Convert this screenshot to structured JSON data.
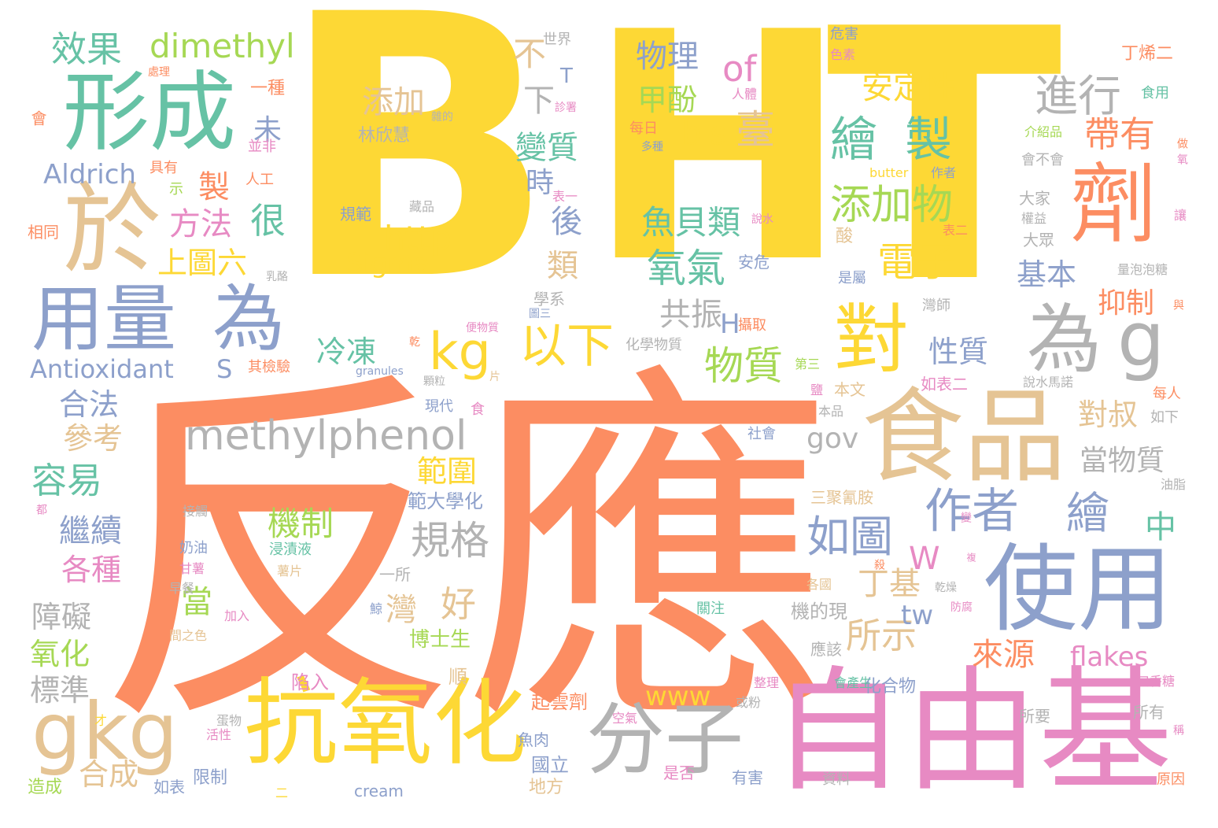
{
  "palette": {
    "yellow": "#fdd835",
    "orange": "#fc8d62",
    "green": "#66c2a5",
    "blue": "#8da0cb",
    "pink": "#e78ac3",
    "lime": "#a6d854",
    "tan": "#e5c494",
    "gray": "#b3b3b3"
  },
  "words": [
    {
      "text": "B"
    },
    {
      "text": "H"
    },
    {
      "text": "T"
    },
    {
      "text": "反應"
    },
    {
      "text": "自由基"
    },
    {
      "text": "食品"
    },
    {
      "text": "使用"
    },
    {
      "text": "抗氧化"
    },
    {
      "text": "分子"
    },
    {
      "text": "形成"
    },
    {
      "text": "於"
    },
    {
      "text": "用量"
    },
    {
      "text": "為"
    },
    {
      "text": "劑"
    },
    {
      "text": "對"
    },
    {
      "text": "為"
    },
    {
      "text": "g"
    },
    {
      "text": "g"
    },
    {
      "text": "kg"
    },
    {
      "text": "methylphenol"
    },
    {
      "text": "kg"
    },
    {
      "text": "以下"
    },
    {
      "text": "繪"
    },
    {
      "text": "製"
    },
    {
      "text": "進行"
    },
    {
      "text": "作者"
    },
    {
      "text": "繪"
    },
    {
      "text": "如圖"
    },
    {
      "text": "效果"
    },
    {
      "text": "dimethyl"
    },
    {
      "text": "of"
    },
    {
      "text": "物理"
    },
    {
      "text": "添加物"
    },
    {
      "text": "http"
    },
    {
      "text": "Sigma"
    },
    {
      "text": "Aldrich"
    },
    {
      "text": "Antioxidant"
    },
    {
      "text": "S"
    },
    {
      "text": "氧氣"
    },
    {
      "text": "電子"
    },
    {
      "text": "帶有"
    },
    {
      "text": "規格"
    },
    {
      "text": "物質"
    },
    {
      "text": "bis"
    },
    {
      "text": "臺"
    },
    {
      "text": "甲酚"
    },
    {
      "text": "安定性"
    },
    {
      "text": "魚貝類"
    },
    {
      "text": "添加"
    },
    {
      "text": "變質"
    },
    {
      "text": "上圖六"
    },
    {
      "text": "方法"
    },
    {
      "text": "很"
    },
    {
      "text": "容易"
    },
    {
      "text": "合法"
    },
    {
      "text": "參考"
    },
    {
      "text": "繼續"
    },
    {
      "text": "各種"
    },
    {
      "text": "障礙"
    },
    {
      "text": "氧化"
    },
    {
      "text": "標準"
    },
    {
      "text": "合成"
    },
    {
      "text": "範圍"
    },
    {
      "text": "機制"
    },
    {
      "text": "共振"
    },
    {
      "text": "冷凍"
    },
    {
      "text": "性質"
    },
    {
      "text": "丁基"
    },
    {
      "text": "所示"
    },
    {
      "text": "來源"
    },
    {
      "text": "flakes"
    },
    {
      "text": "www"
    },
    {
      "text": "對叔"
    },
    {
      "text": "當物質"
    },
    {
      "text": "基本"
    },
    {
      "text": "抑制"
    },
    {
      "text": "中"
    },
    {
      "text": "gov"
    },
    {
      "text": "tw"
    },
    {
      "text": "W"
    },
    {
      "text": "H"
    },
    {
      "text": "灣"
    },
    {
      "text": "好"
    },
    {
      "text": "當"
    },
    {
      "text": "不"
    },
    {
      "text": "下"
    },
    {
      "text": "未"
    },
    {
      "text": "製"
    },
    {
      "text": "時"
    },
    {
      "text": "後"
    },
    {
      "text": "類"
    },
    {
      "text": "T"
    },
    {
      "text": "林欣慧"
    },
    {
      "text": "範大學化"
    },
    {
      "text": "博士生"
    },
    {
      "text": "陷入"
    },
    {
      "text": "順"
    },
    {
      "text": "起雲劑"
    },
    {
      "text": "國立"
    },
    {
      "text": "地方"
    },
    {
      "text": "魚肉"
    },
    {
      "text": "一所"
    },
    {
      "text": "機的現"
    },
    {
      "text": "應該"
    },
    {
      "text": "化合物"
    },
    {
      "text": "三聚氰胺"
    },
    {
      "text": "本文"
    },
    {
      "text": "本品"
    },
    {
      "text": "如表二"
    },
    {
      "text": "說水馬諾"
    },
    {
      "text": "每人"
    },
    {
      "text": "如下"
    },
    {
      "text": "油脂"
    },
    {
      "text": "口香糖"
    },
    {
      "text": "所有"
    },
    {
      "text": "所要"
    },
    {
      "text": "會產生"
    },
    {
      "text": "原因"
    },
    {
      "text": "資料"
    },
    {
      "text": "有害"
    },
    {
      "text": "是否"
    },
    {
      "text": "cream"
    },
    {
      "text": "限制"
    },
    {
      "text": "如表"
    },
    {
      "text": "造成"
    },
    {
      "text": "活性"
    },
    {
      "text": "蛋物"
    },
    {
      "text": "早餐"
    },
    {
      "text": "加入"
    },
    {
      "text": "甘薯"
    },
    {
      "text": "奶油"
    },
    {
      "text": "接觸"
    },
    {
      "text": "間之色"
    },
    {
      "text": "浸漬液"
    },
    {
      "text": "薯片"
    },
    {
      "text": "現代"
    },
    {
      "text": "食"
    },
    {
      "text": "顆粒"
    },
    {
      "text": "granules"
    },
    {
      "text": "片"
    },
    {
      "text": "化學物質"
    },
    {
      "text": "其檢驗"
    },
    {
      "text": "第三"
    },
    {
      "text": "鹽"
    },
    {
      "text": "社會"
    },
    {
      "text": "關注"
    },
    {
      "text": "學系"
    },
    {
      "text": "便物質"
    },
    {
      "text": "乳酪"
    },
    {
      "text": "安危"
    },
    {
      "text": "攝取"
    },
    {
      "text": "是屬"
    },
    {
      "text": "灣師"
    },
    {
      "text": "大眾"
    },
    {
      "text": "酸"
    },
    {
      "text": "表二"
    },
    {
      "text": "量泡泡糖"
    },
    {
      "text": "大家"
    },
    {
      "text": "權益"
    },
    {
      "text": "說水"
    },
    {
      "text": "規範"
    },
    {
      "text": "藏品"
    },
    {
      "text": "butter"
    },
    {
      "text": "作者"
    },
    {
      "text": "會不會"
    },
    {
      "text": "介紹品"
    },
    {
      "text": "食用"
    },
    {
      "text": "人體"
    },
    {
      "text": "丁烯二"
    },
    {
      "text": "危害"
    },
    {
      "text": "色素"
    },
    {
      "text": "每日"
    },
    {
      "text": "多種"
    },
    {
      "text": "世界"
    },
    {
      "text": "診署"
    },
    {
      "text": "雜的"
    },
    {
      "text": "表一"
    },
    {
      "text": "一種"
    },
    {
      "text": "並非"
    },
    {
      "text": "具有"
    },
    {
      "text": "示"
    },
    {
      "text": "人工"
    },
    {
      "text": "相同"
    },
    {
      "text": "處理"
    },
    {
      "text": "會"
    },
    {
      "text": "做"
    },
    {
      "text": "氧"
    },
    {
      "text": "讓"
    },
    {
      "text": "稱"
    },
    {
      "text": "與"
    },
    {
      "text": "變"
    },
    {
      "text": "複"
    },
    {
      "text": "乾燥"
    },
    {
      "text": "防腐"
    },
    {
      "text": "殺"
    },
    {
      "text": "各國"
    },
    {
      "text": "整理"
    },
    {
      "text": "空氣"
    },
    {
      "text": "或粉"
    },
    {
      "text": "鯨"
    },
    {
      "text": "乾"
    },
    {
      "text": "都"
    },
    {
      "text": "才"
    },
    {
      "text": "二"
    },
    {
      "text": "圖三"
    }
  ]
}
